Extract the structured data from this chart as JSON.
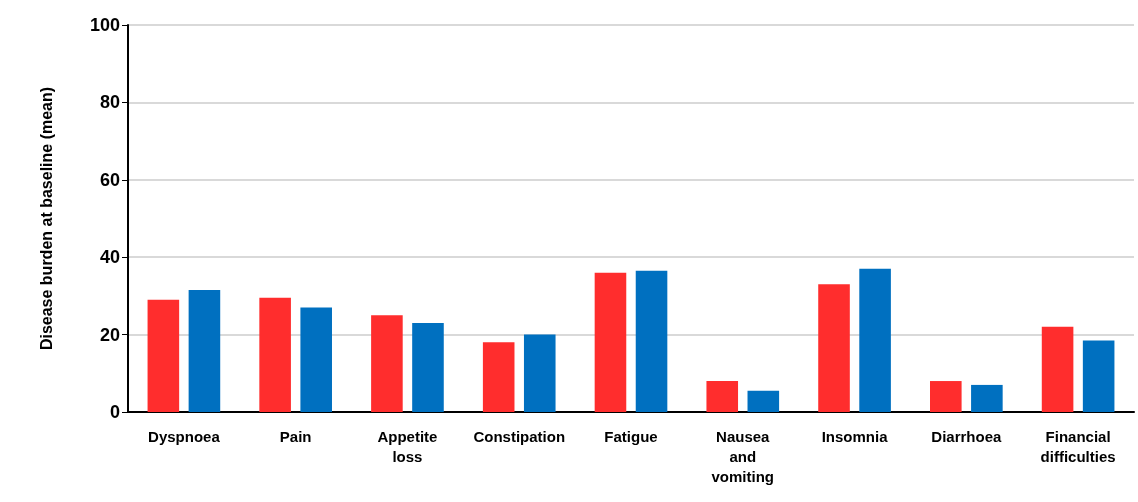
{
  "chart_data": {
    "type": "bar",
    "ylabel": "Disease burden at baseline (mean)",
    "categories": [
      "Dyspnoea",
      "Pain",
      "Appetite loss",
      "Constipation",
      "Fatigue",
      "Nausea and vomiting",
      "Insomnia",
      "Diarrhoea",
      "Financial difficulties"
    ],
    "series": [
      {
        "color": "#ff2d2d",
        "values": [
          29,
          29.5,
          25,
          18,
          36,
          8,
          33,
          8,
          22
        ]
      },
      {
        "color": "#0070c0",
        "values": [
          31.5,
          27,
          23,
          20,
          36.5,
          5.5,
          37,
          7,
          18.5
        ]
      }
    ],
    "ylim": [
      0,
      100
    ],
    "yticks": [
      0,
      20,
      40,
      60,
      80,
      100
    ],
    "grid": "y"
  }
}
